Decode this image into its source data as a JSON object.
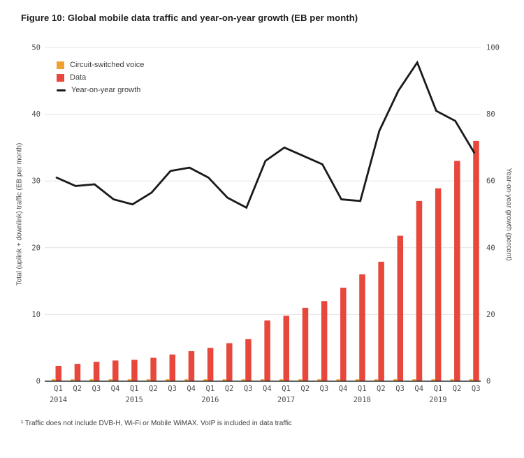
{
  "title": "Figure 10: Global mobile data traffic and year-on-year growth (EB per month)",
  "footnote": "¹ Traffic does not include DVB-H, Wi-Fi or Mobile WiMAX. VoIP is included in data traffic",
  "colors": {
    "voice": "#f0a12f",
    "data": "#e8473b",
    "growth_line": "#1a1a1a",
    "gridline": "#e4e4e4",
    "axis_line": "#2e2e2e",
    "tick_text": "#4d4d4d"
  },
  "chart_data": {
    "type": "bar",
    "combo": [
      "bar",
      "bar",
      "line"
    ],
    "title": "Figure 10: Global mobile data traffic and year-on-year growth (EB per month)",
    "x_quarter_labels": [
      "Q1",
      "Q2",
      "Q3",
      "Q4",
      "Q1",
      "Q2",
      "Q3",
      "Q4",
      "Q1",
      "Q2",
      "Q3",
      "Q4",
      "Q1",
      "Q2",
      "Q3",
      "Q4",
      "Q1",
      "Q2",
      "Q3",
      "Q4",
      "Q1",
      "Q2",
      "Q3"
    ],
    "x_year_labels": [
      {
        "text": "2014",
        "index": 0
      },
      {
        "text": "2015",
        "index": 4
      },
      {
        "text": "2016",
        "index": 8
      },
      {
        "text": "2017",
        "index": 12
      },
      {
        "text": "2018",
        "index": 16
      },
      {
        "text": "2019",
        "index": 20
      }
    ],
    "series": [
      {
        "name": "Circuit-switched voice",
        "type": "bar",
        "axis": "left",
        "color": "#f0a12f",
        "values": [
          0.3,
          0.3,
          0.3,
          0.3,
          0.3,
          0.3,
          0.3,
          0.3,
          0.3,
          0.3,
          0.3,
          0.3,
          0.3,
          0.3,
          0.3,
          0.3,
          0.3,
          0.3,
          0.3,
          0.3,
          0.3,
          0.3,
          0.3
        ]
      },
      {
        "name": "Data",
        "type": "bar",
        "axis": "left",
        "color": "#e8473b",
        "values": [
          2.3,
          2.6,
          2.9,
          3.1,
          3.2,
          3.5,
          4.0,
          4.5,
          5.0,
          5.7,
          6.3,
          9.1,
          9.8,
          11.0,
          12.0,
          14.0,
          16.0,
          17.9,
          21.8,
          27.0,
          28.9,
          33.0,
          36.0
        ]
      },
      {
        "name": "Year-on-year growth",
        "type": "line",
        "axis": "right",
        "color": "#1a1a1a",
        "values": [
          61,
          58.5,
          59,
          54.5,
          53,
          56.5,
          63,
          64,
          61,
          55,
          52,
          66,
          70,
          67.5,
          65,
          54.5,
          54,
          75,
          87,
          95.5,
          81,
          78,
          68.5
        ]
      }
    ],
    "axis_left": {
      "label": "Total (uplink + downlink) traffic (EB per month)",
      "min": 0,
      "max": 50,
      "ticks": [
        0,
        10,
        20,
        30,
        40,
        50
      ]
    },
    "axis_right": {
      "label": "Year-on-year growth (percent)",
      "min": 0,
      "max": 100,
      "ticks": [
        0,
        20,
        40,
        60,
        80,
        100
      ]
    },
    "grid": true,
    "legend_position": "top-left"
  }
}
